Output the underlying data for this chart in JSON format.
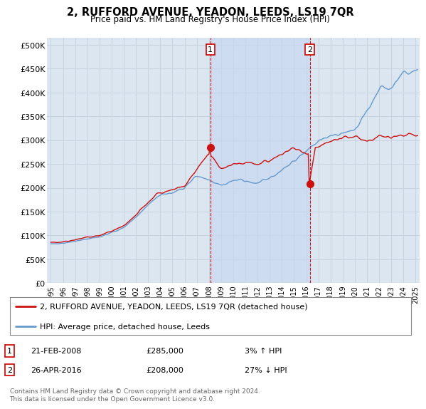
{
  "title": "2, RUFFORD AVENUE, YEADON, LEEDS, LS19 7QR",
  "subtitle": "Price paid vs. HM Land Registry's House Price Index (HPI)",
  "ylabel_ticks": [
    "£0",
    "£50K",
    "£100K",
    "£150K",
    "£200K",
    "£250K",
    "£300K",
    "£350K",
    "£400K",
    "£450K",
    "£500K"
  ],
  "ytick_values": [
    0,
    50000,
    100000,
    150000,
    200000,
    250000,
    300000,
    350000,
    400000,
    450000,
    500000
  ],
  "xlim_start": 1994.7,
  "xlim_end": 2025.3,
  "ylim": [
    0,
    515000
  ],
  "plot_bg_color": "#dce6f0",
  "grid_color": "#c8d4e0",
  "shade_color": "#c8d8f0",
  "sale1_year": 2008.12,
  "sale1_price": 285000,
  "sale2_year": 2016.29,
  "sale2_price": 208000,
  "line_color_property": "#cc1111",
  "line_color_hpi": "#6699cc",
  "legend_label_property": "2, RUFFORD AVENUE, YEADON, LEEDS, LS19 7QR (detached house)",
  "legend_label_hpi": "HPI: Average price, detached house, Leeds",
  "annotation1_date": "21-FEB-2008",
  "annotation1_price": "£285,000",
  "annotation1_hpi": "3% ↑ HPI",
  "annotation2_date": "26-APR-2016",
  "annotation2_price": "£208,000",
  "annotation2_hpi": "27% ↓ HPI",
  "footer": "Contains HM Land Registry data © Crown copyright and database right 2024.\nThis data is licensed under the Open Government Licence v3.0."
}
